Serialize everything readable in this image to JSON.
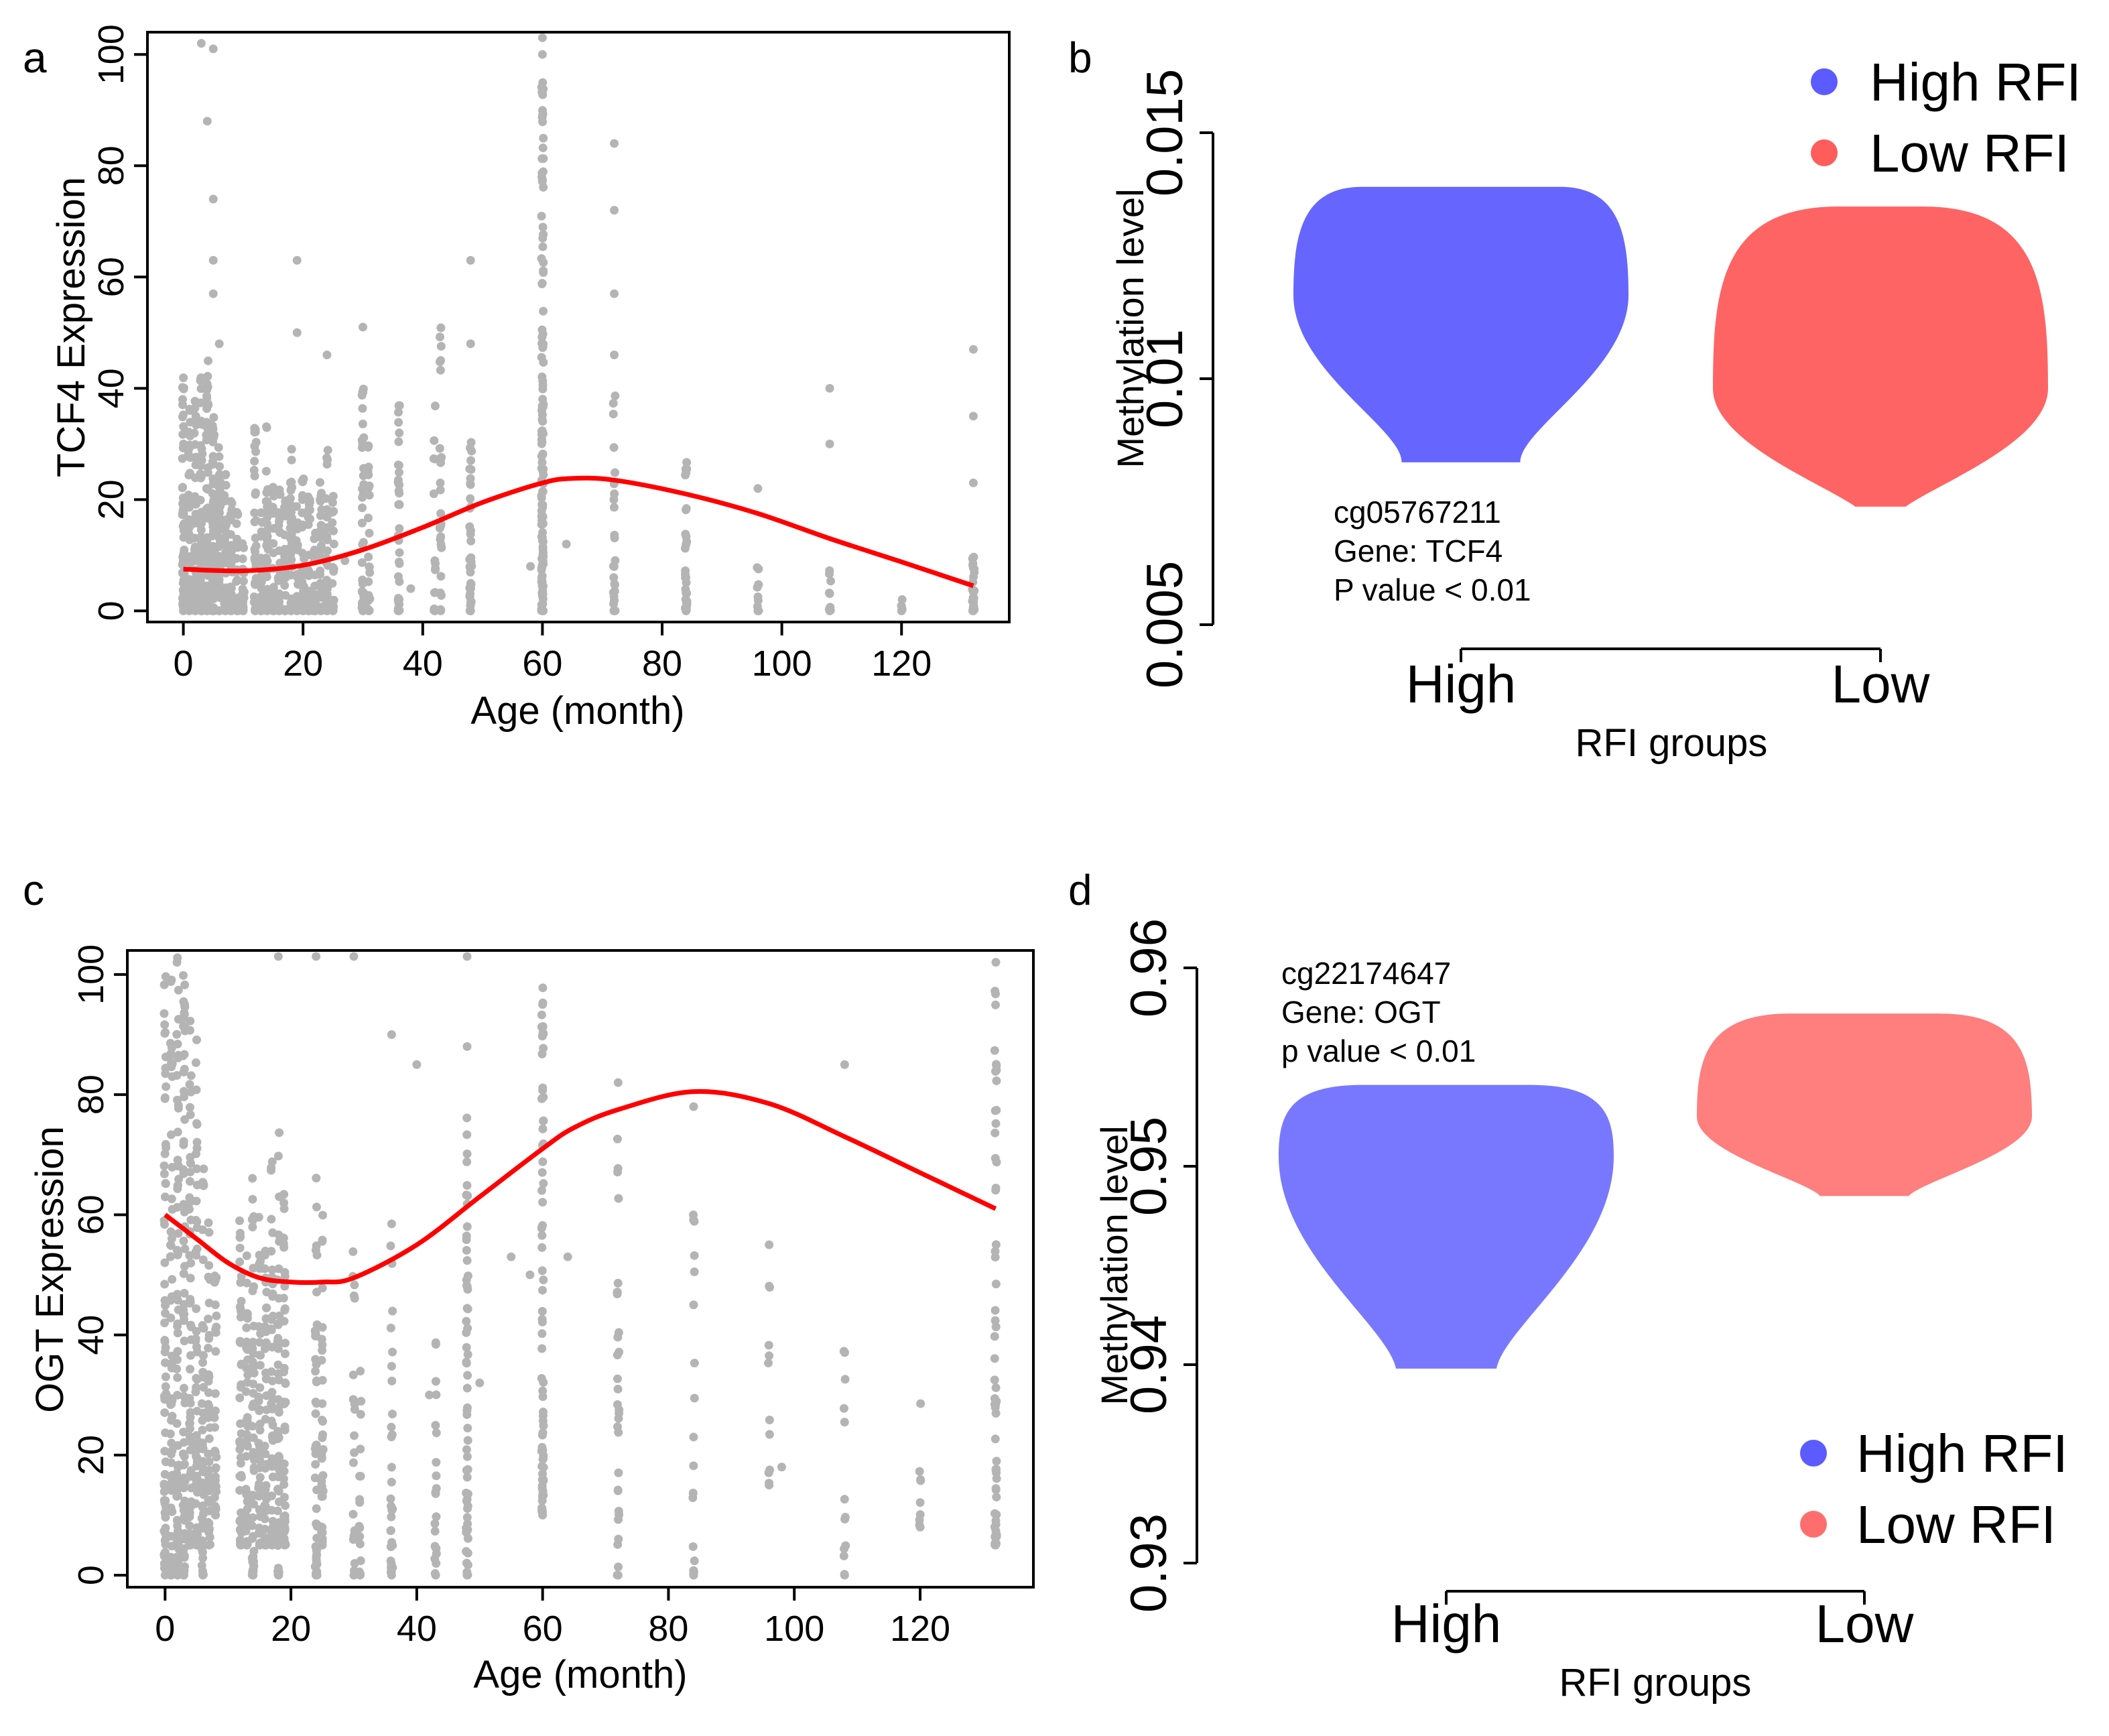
{
  "colors": {
    "scatter_points": "#b4b4b4",
    "trend_line": "#ff0000",
    "high_rfi": "#5b5bff",
    "low_rfi": "#ff5c5c",
    "low_rfi_light": "#ff7e7e",
    "high_rfi_light": "#6f6fff",
    "axis": "#000000"
  },
  "chart_data": [
    {
      "panel": "a",
      "type": "scatter",
      "xlabel": "Age (month)",
      "ylabel": "TCF4 Expression",
      "xlim": [
        -6,
        138
      ],
      "ylim": [
        -2,
        104
      ],
      "xticks": [
        0,
        20,
        40,
        60,
        80,
        100,
        120
      ],
      "yticks": [
        0,
        20,
        40,
        60,
        80,
        100
      ],
      "point_groups": [
        {
          "age": 0,
          "min": 0,
          "max": 42,
          "n": 55
        },
        {
          "age": 1,
          "min": 0,
          "max": 40,
          "n": 40
        },
        {
          "age": 2,
          "min": 0,
          "max": 38,
          "n": 45
        },
        {
          "age": 3,
          "min": 0,
          "max": 42,
          "n": 55
        },
        {
          "age": 4,
          "min": 0,
          "max": 45,
          "n": 60
        },
        {
          "age": 5,
          "min": 0,
          "max": 35,
          "n": 60
        },
        {
          "age": 6,
          "min": 0,
          "max": 30,
          "n": 50
        },
        {
          "age": 7,
          "min": 0,
          "max": 25,
          "n": 30
        },
        {
          "age": 8,
          "min": 0,
          "max": 20,
          "n": 25
        },
        {
          "age": 9,
          "min": 0,
          "max": 18,
          "n": 20
        },
        {
          "age": 10,
          "min": 0,
          "max": 15,
          "n": 20
        },
        {
          "age": 12,
          "min": 0,
          "max": 33,
          "n": 40
        },
        {
          "age": 13,
          "min": 0,
          "max": 20,
          "n": 25
        },
        {
          "age": 14,
          "min": 0,
          "max": 35,
          "n": 35
        },
        {
          "age": 15,
          "min": 0,
          "max": 25,
          "n": 25
        },
        {
          "age": 16,
          "min": 0,
          "max": 22,
          "n": 25
        },
        {
          "age": 17,
          "min": 0,
          "max": 20,
          "n": 25
        },
        {
          "age": 18,
          "min": 0,
          "max": 30,
          "n": 35
        },
        {
          "age": 19,
          "min": 0,
          "max": 20,
          "n": 20
        },
        {
          "age": 20,
          "min": 0,
          "max": 25,
          "n": 25
        },
        {
          "age": 21,
          "min": 0,
          "max": 22,
          "n": 25
        },
        {
          "age": 22,
          "min": 0,
          "max": 18,
          "n": 20
        },
        {
          "age": 23,
          "min": 0,
          "max": 25,
          "n": 25
        },
        {
          "age": 24,
          "min": 0,
          "max": 30,
          "n": 30
        },
        {
          "age": 25,
          "min": 0,
          "max": 22,
          "n": 20
        },
        {
          "age": 30,
          "min": 0,
          "max": 40,
          "n": 40
        },
        {
          "age": 31,
          "min": 0,
          "max": 30,
          "n": 20
        },
        {
          "age": 36,
          "min": 0,
          "max": 37,
          "n": 35
        },
        {
          "age": 42,
          "min": 0,
          "max": 45,
          "n": 15
        },
        {
          "age": 43,
          "min": 0,
          "max": 52,
          "n": 25
        },
        {
          "age": 48,
          "min": 0,
          "max": 35,
          "n": 35
        },
        {
          "age": 60,
          "min": 0,
          "max": 95,
          "n": 130
        },
        {
          "age": 72,
          "min": 0,
          "max": 40,
          "n": 25
        },
        {
          "age": 84,
          "min": 0,
          "max": 28,
          "n": 30
        },
        {
          "age": 96,
          "min": 0,
          "max": 10,
          "n": 10
        },
        {
          "age": 108,
          "min": 0,
          "max": 8,
          "n": 8
        },
        {
          "age": 120,
          "min": 0,
          "max": 3,
          "n": 4
        },
        {
          "age": 132,
          "min": 0,
          "max": 17,
          "n": 25
        }
      ],
      "outliers": [
        [
          3,
          102
        ],
        [
          5,
          101
        ],
        [
          4,
          88
        ],
        [
          5,
          74
        ],
        [
          5,
          63
        ],
        [
          5,
          57
        ],
        [
          6,
          48
        ],
        [
          19,
          63
        ],
        [
          19,
          50
        ],
        [
          24,
          46
        ],
        [
          30,
          51
        ],
        [
          43,
          45
        ],
        [
          48,
          63
        ],
        [
          48,
          48
        ],
        [
          60,
          103
        ],
        [
          60,
          100
        ],
        [
          72,
          84
        ],
        [
          72,
          72
        ],
        [
          72,
          57
        ],
        [
          72,
          46
        ],
        [
          96,
          22
        ],
        [
          108,
          40
        ],
        [
          108,
          30
        ],
        [
          132,
          47
        ],
        [
          132,
          35
        ],
        [
          132,
          23
        ],
        [
          64,
          12
        ],
        [
          27,
          9
        ],
        [
          38,
          4
        ],
        [
          58,
          8
        ]
      ],
      "trend": {
        "x": [
          0,
          10,
          20,
          30,
          40,
          50,
          60,
          65,
          72,
          84,
          96,
          108,
          120,
          132
        ],
        "y": [
          7.5,
          7.2,
          8.2,
          11.0,
          15.0,
          19.5,
          23.0,
          23.8,
          23.5,
          21.0,
          17.5,
          13.0,
          8.8,
          4.5
        ]
      }
    },
    {
      "panel": "b",
      "type": "violin",
      "xlabel": "RFI groups",
      "ylabel": "Methylation level",
      "ylim": [
        0.005,
        0.015
      ],
      "yticks": [
        "0.005",
        "0.01",
        "0.015"
      ],
      "categories": [
        "High",
        "Low"
      ],
      "annotation": [
        "cg05767211",
        "Gene: TCF4",
        "P value < 0.01"
      ],
      "legend": [
        "High RFI",
        "Low RFI"
      ],
      "legend_position": "top-right",
      "violins": [
        {
          "group": "High",
          "min": 0.0083,
          "max": 0.0139,
          "widest": 0.0117
        },
        {
          "group": "Low",
          "min": 0.0074,
          "max": 0.0135,
          "widest": 0.0098
        }
      ]
    },
    {
      "panel": "c",
      "type": "scatter",
      "xlabel": "Age (month)",
      "ylabel": "OGT Expression",
      "xlim": [
        -6,
        138
      ],
      "ylim": [
        -2,
        104
      ],
      "xticks": [
        0,
        20,
        40,
        60,
        80,
        100,
        120
      ],
      "yticks": [
        0,
        20,
        40,
        60,
        80,
        100
      ],
      "point_groups": [
        {
          "age": 0,
          "min": 0,
          "max": 103,
          "n": 70
        },
        {
          "age": 1,
          "min": 0,
          "max": 100,
          "n": 60
        },
        {
          "age": 2,
          "min": 0,
          "max": 103,
          "n": 70
        },
        {
          "age": 3,
          "min": 0,
          "max": 100,
          "n": 70
        },
        {
          "age": 4,
          "min": 5,
          "max": 95,
          "n": 60
        },
        {
          "age": 5,
          "min": 5,
          "max": 90,
          "n": 55
        },
        {
          "age": 6,
          "min": 0,
          "max": 70,
          "n": 50
        },
        {
          "age": 7,
          "min": 5,
          "max": 60,
          "n": 40
        },
        {
          "age": 8,
          "min": 10,
          "max": 55,
          "n": 30
        },
        {
          "age": 12,
          "min": 5,
          "max": 65,
          "n": 45
        },
        {
          "age": 13,
          "min": 5,
          "max": 55,
          "n": 40
        },
        {
          "age": 14,
          "min": 0,
          "max": 70,
          "n": 50
        },
        {
          "age": 15,
          "min": 5,
          "max": 60,
          "n": 45
        },
        {
          "age": 16,
          "min": 5,
          "max": 55,
          "n": 45
        },
        {
          "age": 17,
          "min": 5,
          "max": 70,
          "n": 50
        },
        {
          "age": 18,
          "min": 0,
          "max": 75,
          "n": 55
        },
        {
          "age": 19,
          "min": 5,
          "max": 70,
          "n": 45
        },
        {
          "age": 24,
          "min": 0,
          "max": 70,
          "n": 50
        },
        {
          "age": 25,
          "min": 5,
          "max": 65,
          "n": 35
        },
        {
          "age": 30,
          "min": 0,
          "max": 55,
          "n": 20
        },
        {
          "age": 31,
          "min": 0,
          "max": 35,
          "n": 15
        },
        {
          "age": 36,
          "min": 0,
          "max": 60,
          "n": 30
        },
        {
          "age": 43,
          "min": 0,
          "max": 45,
          "n": 20
        },
        {
          "age": 48,
          "min": 0,
          "max": 80,
          "n": 60
        },
        {
          "age": 60,
          "min": 10,
          "max": 98,
          "n": 75
        },
        {
          "age": 72,
          "min": 0,
          "max": 82,
          "n": 30
        },
        {
          "age": 84,
          "min": 0,
          "max": 80,
          "n": 15
        },
        {
          "age": 96,
          "min": 15,
          "max": 60,
          "n": 10
        },
        {
          "age": 108,
          "min": 0,
          "max": 38,
          "n": 12
        },
        {
          "age": 120,
          "min": 8,
          "max": 34,
          "n": 8
        },
        {
          "age": 132,
          "min": 5,
          "max": 103,
          "n": 60
        }
      ],
      "outliers": [
        [
          18,
          103
        ],
        [
          24,
          103
        ],
        [
          30,
          103
        ],
        [
          48,
          103
        ],
        [
          36,
          90
        ],
        [
          40,
          85
        ],
        [
          48,
          88
        ],
        [
          60,
          95
        ],
        [
          72,
          82
        ],
        [
          108,
          85
        ],
        [
          84,
          78
        ],
        [
          96,
          55
        ],
        [
          84,
          45
        ],
        [
          84,
          23
        ],
        [
          98,
          18
        ],
        [
          64,
          53
        ],
        [
          55,
          53
        ],
        [
          58,
          50
        ],
        [
          42,
          30
        ],
        [
          50,
          32
        ],
        [
          84,
          0
        ]
      ],
      "trend": {
        "x": [
          0,
          5,
          10,
          15,
          20,
          25,
          30,
          40,
          50,
          60,
          65,
          72,
          84,
          96,
          108,
          120,
          132
        ],
        "y": [
          60,
          56,
          52,
          49.5,
          48.8,
          48.8,
          49.5,
          55,
          63,
          71,
          74.5,
          77.5,
          80.5,
          78.5,
          73,
          67,
          61
        ]
      }
    },
    {
      "panel": "d",
      "type": "violin",
      "xlabel": "RFI groups",
      "ylabel": "Methylation level",
      "ylim": [
        0.93,
        0.96
      ],
      "yticks": [
        "0.93",
        "0.94",
        "0.95",
        "0.96"
      ],
      "categories": [
        "High",
        "Low"
      ],
      "annotation": [
        "cg22174647",
        "Gene: OGT",
        "p value < 0.01"
      ],
      "legend": [
        "High RFI",
        "Low RFI"
      ],
      "legend_position": "bottom-right",
      "violins": [
        {
          "group": "High",
          "min": 0.9398,
          "max": 0.9541,
          "widest": 0.9505
        },
        {
          "group": "Low",
          "min": 0.9485,
          "max": 0.9577,
          "widest": 0.9525
        }
      ]
    }
  ]
}
